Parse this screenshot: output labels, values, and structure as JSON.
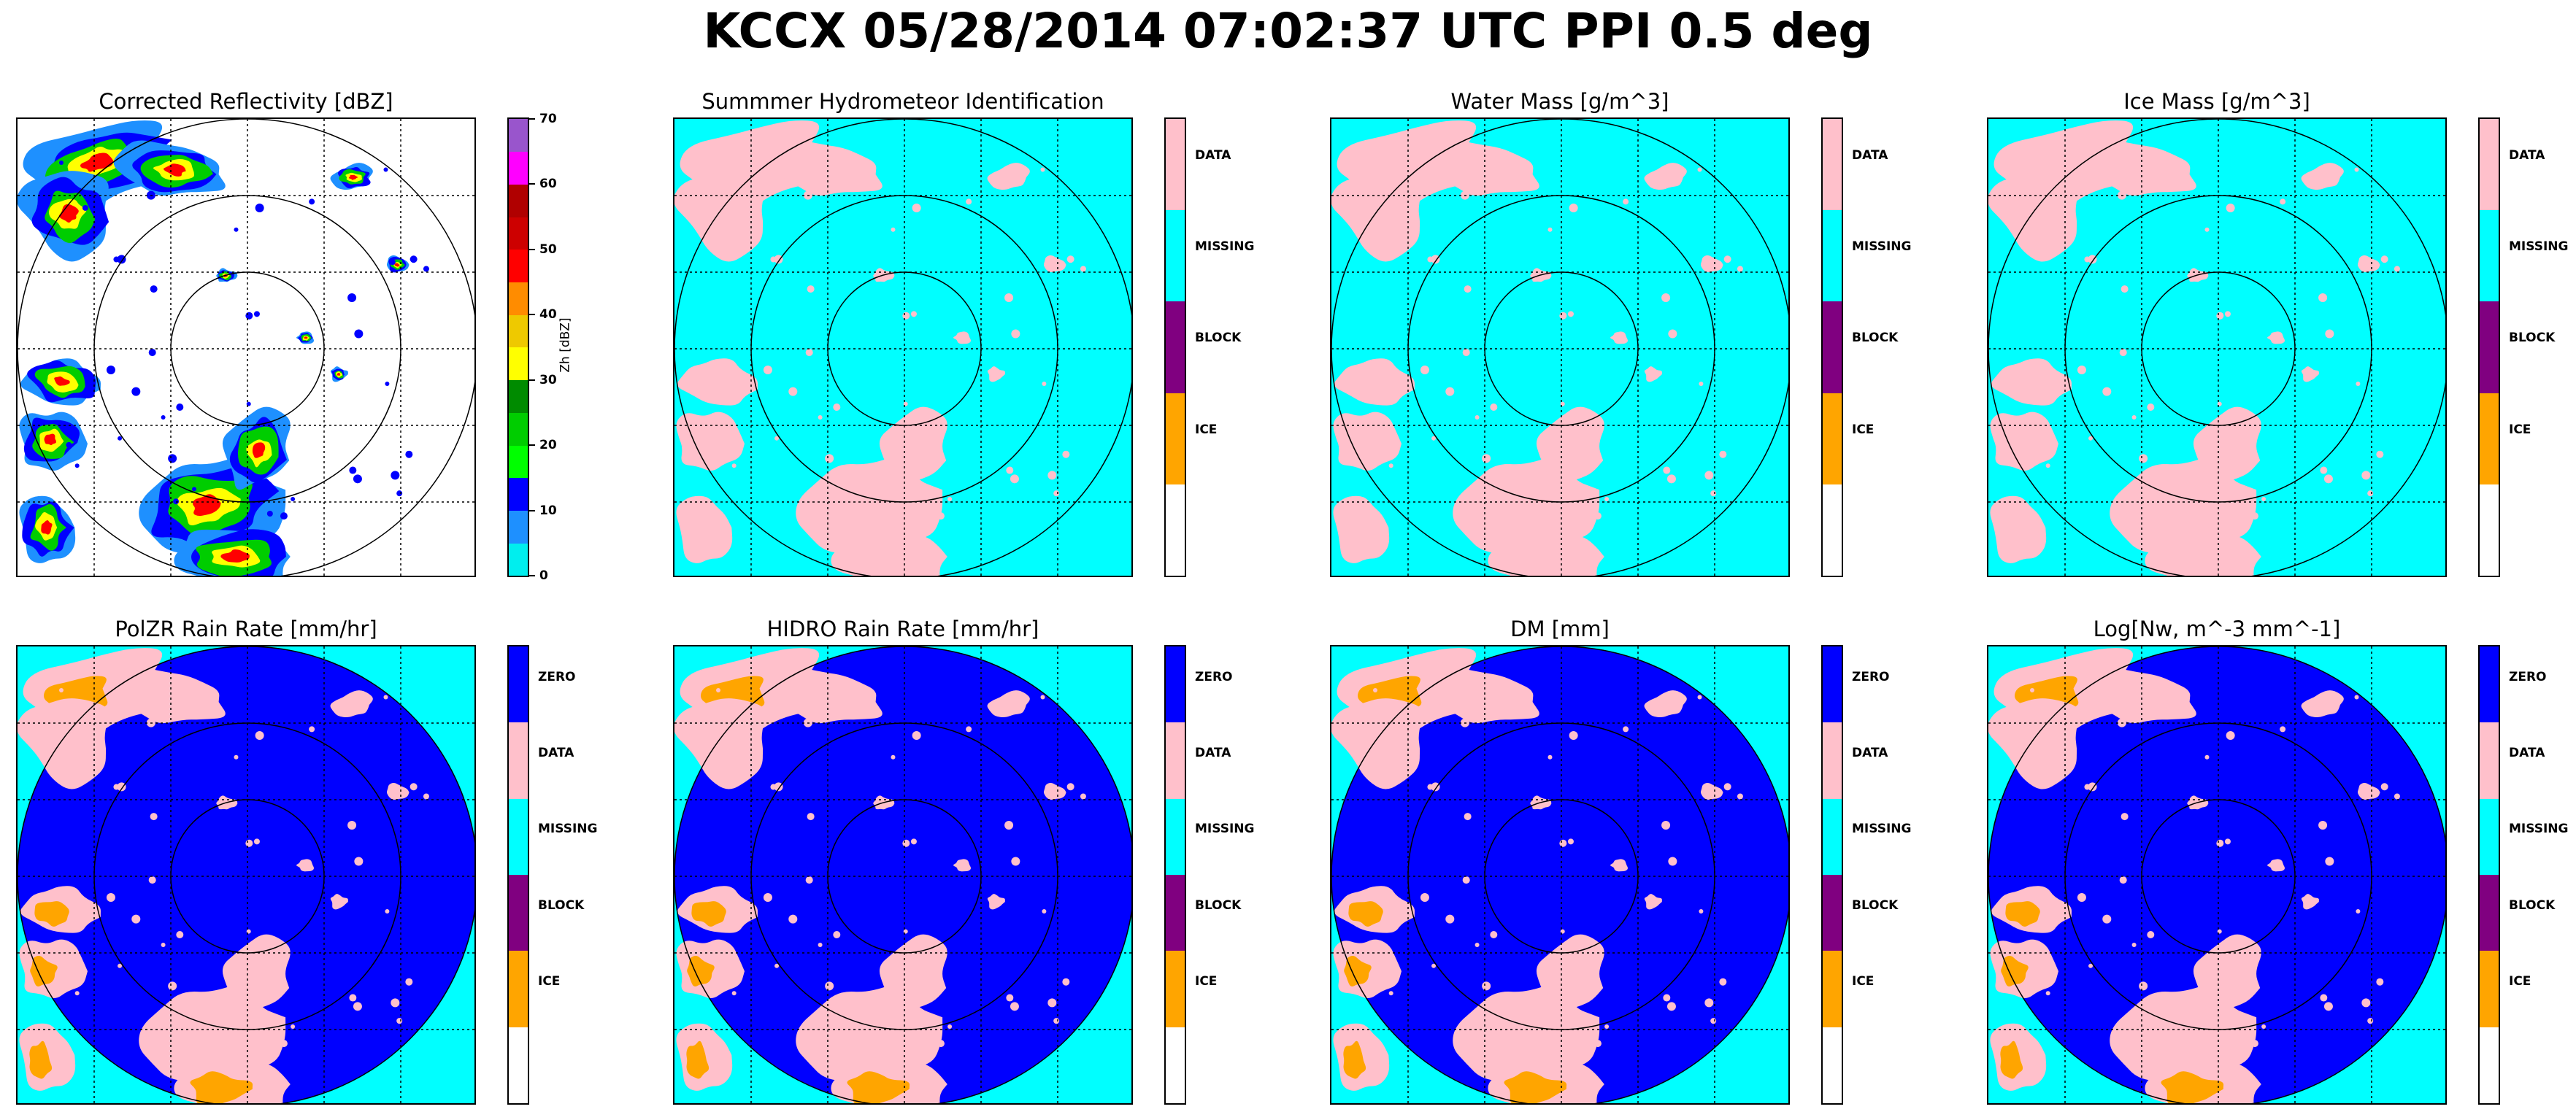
{
  "title": "KCCX 05/28/2014 07:02:37 UTC PPI 0.5 deg",
  "colors": {
    "zero": "#0000ff",
    "data": "#ffc0cb",
    "missing": "#00ffff",
    "block": "#800080",
    "ice": "#ffa500",
    "none": "#ffffff"
  },
  "chart_data": [
    {
      "type": "heatmap",
      "title": "Corrected Reflectivity [dBZ]",
      "colorbar": {
        "label": "Zh [dBZ]",
        "ticks": [
          "0",
          "10",
          "20",
          "30",
          "40",
          "50",
          "60",
          "70"
        ],
        "range": [
          0,
          70
        ],
        "colors": [
          "#00eeee",
          "#1e90ff",
          "#0000ff",
          "#00ff00",
          "#00cd00",
          "#008b00",
          "#ffff00",
          "#eec900",
          "#ff8c00",
          "#ff0000",
          "#cd0000",
          "#b00000",
          "#ff00ff",
          "#9955cc"
        ]
      },
      "range_rings": 3,
      "grid": true
    },
    {
      "type": "heatmap",
      "title": "Summmer Hydrometeor Identification",
      "colorbar": {
        "labels": [
          "DATA",
          "MISSING",
          "BLOCK",
          "ICE"
        ],
        "categories": [
          "data",
          "missing",
          "block",
          "ice",
          "none"
        ]
      },
      "background": "missing",
      "range_rings": 3,
      "grid": true
    },
    {
      "type": "heatmap",
      "title": "Water Mass [g/m^3]",
      "colorbar": {
        "labels": [
          "DATA",
          "MISSING",
          "BLOCK",
          "ICE"
        ],
        "categories": [
          "data",
          "missing",
          "block",
          "ice",
          "none"
        ]
      },
      "background": "missing",
      "range_rings": 3,
      "grid": true
    },
    {
      "type": "heatmap",
      "title": "Ice Mass [g/m^3]",
      "colorbar": {
        "labels": [
          "DATA",
          "MISSING",
          "BLOCK",
          "ICE"
        ],
        "categories": [
          "data",
          "missing",
          "block",
          "ice",
          "none"
        ]
      },
      "background": "missing",
      "range_rings": 3,
      "grid": true
    },
    {
      "type": "heatmap",
      "title": "PolZR Rain Rate [mm/hr]",
      "colorbar": {
        "labels": [
          "ZERO",
          "DATA",
          "MISSING",
          "BLOCK",
          "ICE"
        ],
        "categories": [
          "zero",
          "data",
          "missing",
          "block",
          "ice",
          "none"
        ]
      },
      "background": "missing",
      "disk": "zero",
      "range_rings": 3,
      "grid": true
    },
    {
      "type": "heatmap",
      "title": "HIDRO Rain Rate [mm/hr]",
      "colorbar": {
        "labels": [
          "ZERO",
          "DATA",
          "MISSING",
          "BLOCK",
          "ICE"
        ],
        "categories": [
          "zero",
          "data",
          "missing",
          "block",
          "ice",
          "none"
        ]
      },
      "background": "missing",
      "disk": "zero",
      "range_rings": 3,
      "grid": true
    },
    {
      "type": "heatmap",
      "title": "DM [mm]",
      "colorbar": {
        "labels": [
          "ZERO",
          "DATA",
          "MISSING",
          "BLOCK",
          "ICE"
        ],
        "categories": [
          "zero",
          "data",
          "missing",
          "block",
          "ice",
          "none"
        ]
      },
      "background": "missing",
      "disk": "zero",
      "range_rings": 3,
      "grid": true
    },
    {
      "type": "heatmap",
      "title": "Log[Nw, m^-3 mm^-1]",
      "colorbar": {
        "labels": [
          "ZERO",
          "DATA",
          "MISSING",
          "BLOCK",
          "ICE"
        ],
        "categories": [
          "zero",
          "data",
          "missing",
          "block",
          "ice",
          "none"
        ]
      },
      "background": "missing",
      "disk": "zero",
      "range_rings": 3,
      "grid": true
    }
  ]
}
